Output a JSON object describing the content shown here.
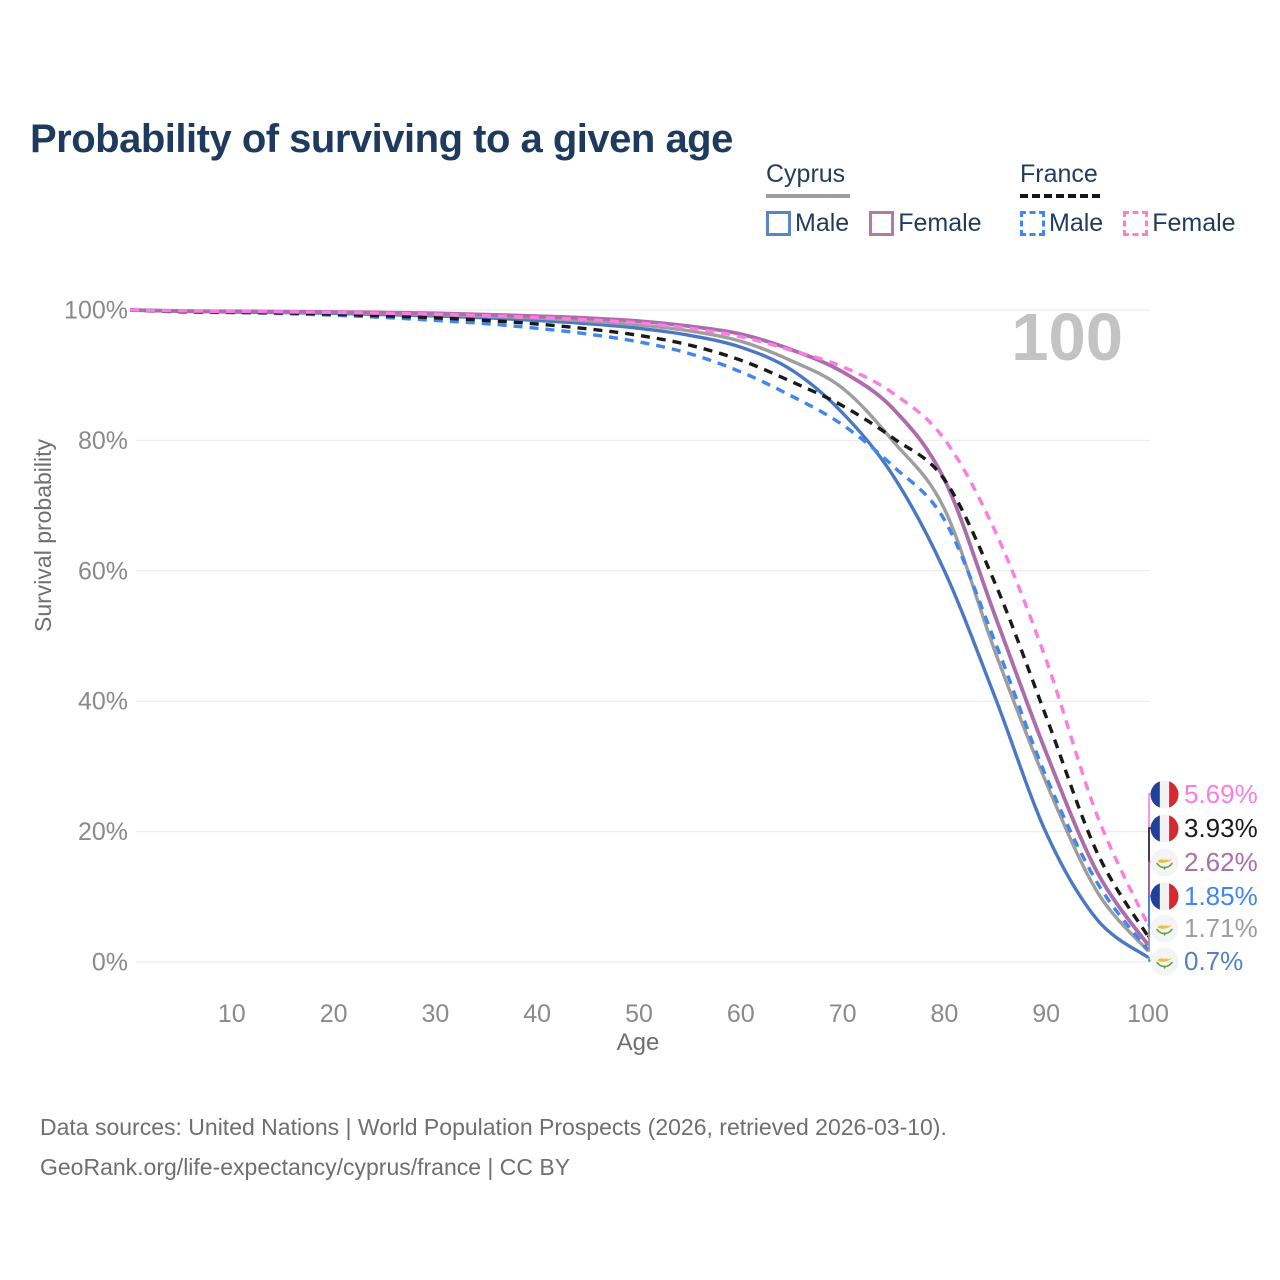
{
  "title": "Probability of surviving to a given age",
  "watermark": "100",
  "legend": {
    "groups": [
      {
        "name": "Cyprus",
        "line_style": "solid",
        "underline_color": "#9e9e9e",
        "items": [
          {
            "label": "Male",
            "color": "#4a79c2"
          },
          {
            "label": "Female",
            "color": "#b279ae"
          }
        ]
      },
      {
        "name": "France",
        "line_style": "dashed",
        "underline_color": "#141414",
        "items": [
          {
            "label": "Male",
            "color": "#3f86f0"
          },
          {
            "label": "Female",
            "color": "#fb7de1"
          }
        ]
      }
    ]
  },
  "chart_data": {
    "type": "line",
    "title": "Probability of surviving to a given age",
    "xlabel": "Age",
    "ylabel": "Survival probability",
    "xlim": [
      0,
      100
    ],
    "ylim": [
      0,
      100
    ],
    "grid": "horizontal",
    "legend_position": "top-right",
    "x_ticks": [
      {
        "value": 10,
        "label": "10"
      },
      {
        "value": 20,
        "label": "20"
      },
      {
        "value": 30,
        "label": "30"
      },
      {
        "value": 40,
        "label": "40"
      },
      {
        "value": 50,
        "label": "50"
      },
      {
        "value": 60,
        "label": "60"
      },
      {
        "value": 70,
        "label": "70"
      },
      {
        "value": 80,
        "label": "80"
      },
      {
        "value": 90,
        "label": "90"
      },
      {
        "value": 100,
        "label": "100"
      }
    ],
    "y_ticks": [
      {
        "value": 0,
        "label": "0%"
      },
      {
        "value": 20,
        "label": "20%"
      },
      {
        "value": 40,
        "label": "40%"
      },
      {
        "value": 60,
        "label": "60%"
      },
      {
        "value": 80,
        "label": "80%"
      },
      {
        "value": 100,
        "label": "100%"
      }
    ],
    "x": [
      0,
      5,
      10,
      15,
      20,
      25,
      30,
      35,
      40,
      45,
      50,
      55,
      60,
      65,
      70,
      75,
      80,
      85,
      90,
      95,
      100
    ],
    "series": [
      {
        "id": "cyprus-male",
        "name": "Cyprus Male",
        "country": "Cyprus",
        "sex": "Male",
        "color": "#4a79c2",
        "dash": null,
        "width": 3.4,
        "values": [
          100,
          99.8,
          99.7,
          99.6,
          99.5,
          99.3,
          99.1,
          98.8,
          98.4,
          97.9,
          97.2,
          96.1,
          94.3,
          90.8,
          84.2,
          74.5,
          60.0,
          40.5,
          19.8,
          6.5,
          0.7
        ]
      },
      {
        "id": "cyprus-total",
        "name": "Cyprus Both sexes",
        "country": "Cyprus",
        "sex": "Both",
        "color": "#9e9e9e",
        "dash": null,
        "width": 3.4,
        "values": [
          100,
          99.82,
          99.75,
          99.68,
          99.6,
          99.45,
          99.3,
          99.05,
          98.75,
          98.3,
          97.7,
          96.8,
          95.2,
          92.2,
          88.0,
          79.8,
          69.5,
          47.5,
          27.5,
          10.8,
          1.71
        ]
      },
      {
        "id": "cyprus-female",
        "name": "Cyprus Female",
        "country": "Cyprus",
        "sex": "Female",
        "color": "#ad6cab",
        "dash": null,
        "width": 3.8,
        "values": [
          100,
          99.85,
          99.8,
          99.75,
          99.7,
          99.6,
          99.5,
          99.3,
          99.05,
          98.75,
          98.3,
          97.5,
          96.3,
          93.9,
          90.5,
          84.8,
          74.0,
          53.0,
          32.1,
          13.8,
          2.62
        ]
      },
      {
        "id": "france-male",
        "name": "France Male",
        "country": "France",
        "sex": "Male",
        "color": "#3f86f0",
        "dash": "9 7",
        "width": 3.4,
        "values": [
          100,
          99.7,
          99.6,
          99.45,
          99.2,
          98.85,
          98.4,
          97.9,
          97.2,
          96.3,
          95.1,
          93.3,
          90.5,
          86.8,
          82.4,
          76.0,
          67.8,
          49.0,
          28.4,
          12.2,
          1.85
        ]
      },
      {
        "id": "france-total",
        "name": "France Both sexes",
        "country": "France",
        "sex": "Both",
        "color": "#1a1a1a",
        "dash": "9 7",
        "width": 3.4,
        "values": [
          100,
          99.78,
          99.68,
          99.55,
          99.35,
          99.1,
          98.8,
          98.4,
          97.85,
          97.1,
          96.1,
          94.6,
          92.3,
          89.0,
          85.3,
          80.3,
          74.0,
          58.0,
          37.6,
          16.8,
          3.93
        ]
      },
      {
        "id": "france-female",
        "name": "France Female",
        "country": "France",
        "sex": "Female",
        "color": "#fb7de1",
        "dash": "9 7",
        "width": 3.4,
        "values": [
          100,
          99.85,
          99.78,
          99.72,
          99.62,
          99.5,
          99.35,
          99.12,
          98.85,
          98.5,
          98.0,
          97.2,
          95.9,
          93.8,
          91.3,
          87.2,
          80.2,
          66.0,
          46.3,
          22.5,
          5.69
        ]
      }
    ],
    "end_labels": [
      {
        "flag": "france",
        "text": "5.69%",
        "value": 5.69,
        "color": "#fb7de1"
      },
      {
        "flag": "france",
        "text": "3.93%",
        "value": 3.93,
        "color": "#1a1a1a"
      },
      {
        "flag": "cyprus",
        "text": "2.62%",
        "value": 2.62,
        "color": "#ad6cab"
      },
      {
        "flag": "france",
        "text": "1.85%",
        "value": 1.85,
        "color": "#3f86f0"
      },
      {
        "flag": "cyprus",
        "text": "1.71%",
        "value": 1.71,
        "color": "#9e9e9e"
      },
      {
        "flag": "cyprus",
        "text": "0.7%",
        "value": 0.7,
        "color": "#5580c4"
      }
    ]
  },
  "footer": {
    "line1": "Data sources: United Nations | World Population Prospects (2026, retrieved 2026-03-10).",
    "line2": "GeoRank.org/life-expectancy/cyprus/france | CC BY"
  }
}
